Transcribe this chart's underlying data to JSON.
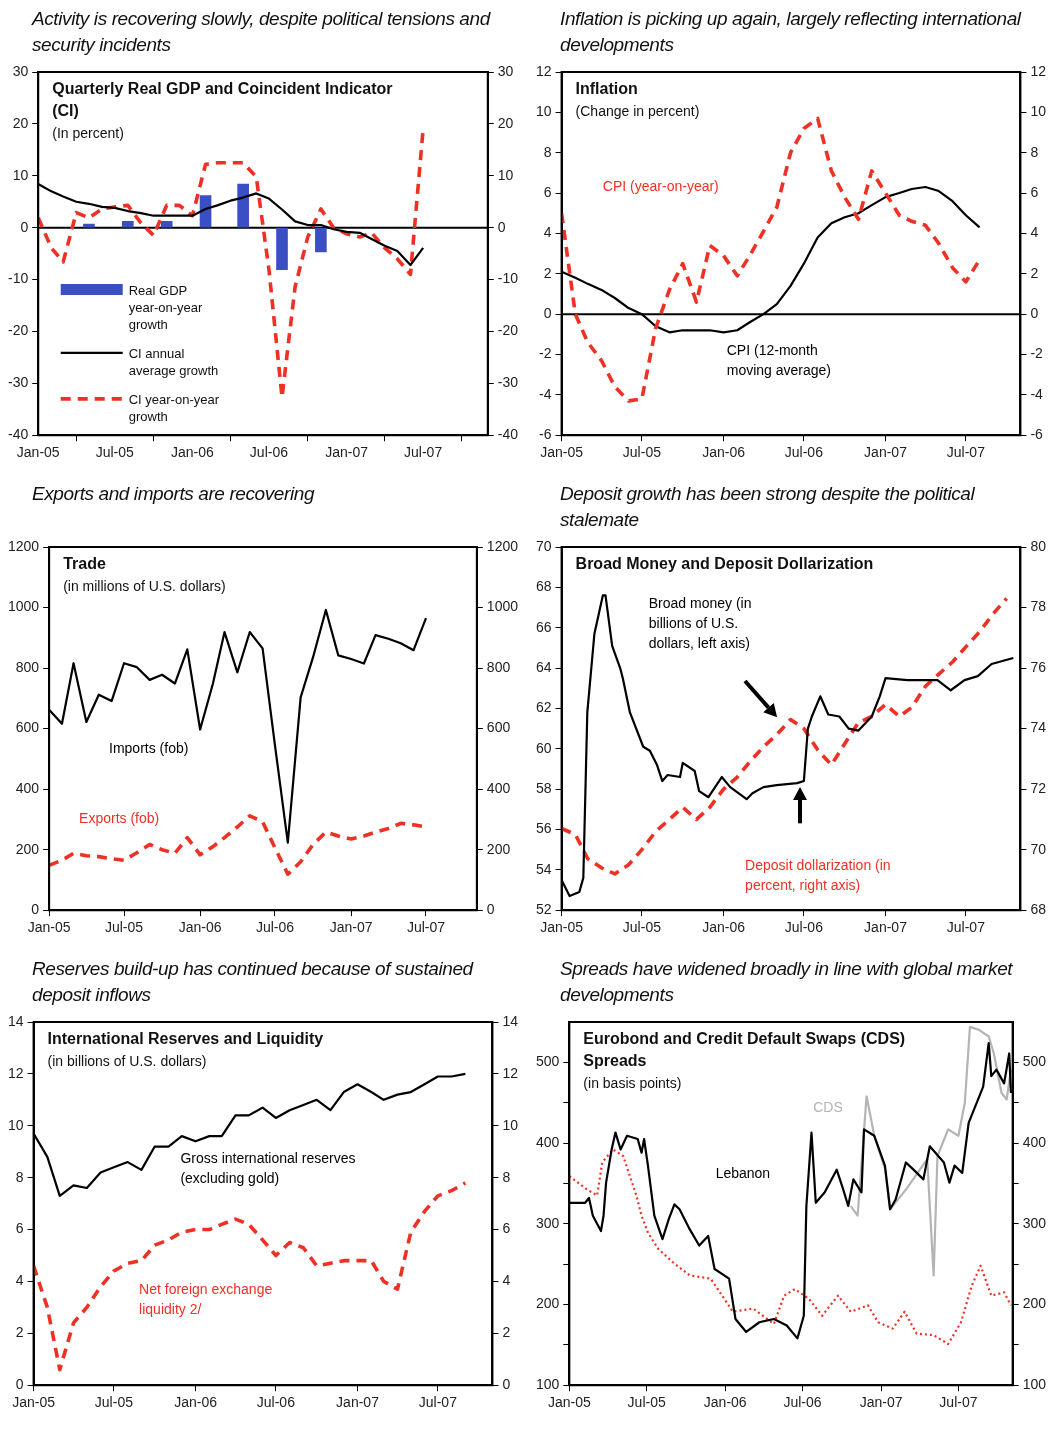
{
  "chart_data": [
    {
      "type": "line",
      "title": "Activity is recovering slowly, despite political tensions and security incidents",
      "subtitle": "Quarterly Real GDP and Coincident Indicator (CI)",
      "annotations": [
        "(In percent)"
      ],
      "x": [
        "2005-01",
        "2005-02",
        "2005-03",
        "2005-04",
        "2005-05",
        "2005-06",
        "2005-07",
        "2005-08",
        "2005-09",
        "2005-10",
        "2005-11",
        "2005-12",
        "2006-01",
        "2006-02",
        "2006-03",
        "2006-04",
        "2006-05",
        "2006-06",
        "2006-07",
        "2006-08",
        "2006-09",
        "2006-10",
        "2006-11",
        "2006-12",
        "2007-01",
        "2007-02",
        "2007-03",
        "2007-04",
        "2007-05",
        "2007-06",
        "2007-07"
      ],
      "series": [
        {
          "name": "Real GDP year-on-year growth",
          "type": "bar",
          "color": "#3b4fc4",
          "x": [
            "2005-05",
            "2005-08",
            "2005-11",
            "2006-02",
            "2006-05",
            "2006-08",
            "2006-11"
          ],
          "values": [
            0.7,
            1.2,
            1.2,
            6.2,
            8.4,
            -8.1,
            -4.7
          ]
        },
        {
          "name": "CI annual average growth",
          "color": "#000000",
          "values": [
            8.4,
            7.0,
            6.0,
            5.0,
            4.6,
            4.0,
            3.8,
            3.2,
            2.8,
            2.3,
            2.3,
            2.3,
            2.3,
            3.6,
            4.3,
            5.2,
            5.8,
            6.6,
            5.6,
            3.5,
            1.2,
            0.5,
            0.5,
            -0.3,
            -0.8,
            -1.0,
            -2.2,
            -3.5,
            -4.5,
            -7.2,
            -3.9
          ]
        },
        {
          "name": "CI year-on-year growth",
          "color": "#ee3124",
          "line_style": "dashed",
          "values": [
            1.9,
            -3.9,
            -6.6,
            2.9,
            1.9,
            3.6,
            4.0,
            4.3,
            0.9,
            -1.5,
            4.3,
            4.3,
            2.3,
            12.2,
            12.5,
            12.5,
            12.5,
            9.8,
            -8,
            -32.7,
            -11.4,
            -1.8,
            3.6,
            0,
            -1.2,
            -1.8,
            -1.0,
            -3.9,
            -6,
            -9,
            19
          ]
        }
      ],
      "xlim": [
        "2005-01",
        "2007-12"
      ],
      "xticks": [
        {
          "value": "2005-01",
          "label": "Jan-05"
        },
        {
          "value": "2005-07",
          "label": "Jul-05"
        },
        {
          "value": "2006-01",
          "label": "Jan-06"
        },
        {
          "value": "2006-07",
          "label": "Jul-06"
        },
        {
          "value": "2007-01",
          "label": "Jan-07"
        },
        {
          "value": "2007-07",
          "label": "Jul-07"
        }
      ],
      "ylim": [
        -40,
        30
      ],
      "yticks": [
        -40,
        -30,
        -20,
        -10,
        0,
        10,
        20,
        30
      ],
      "y2lim": [
        -40,
        30
      ],
      "y2ticks": [
        -40,
        -30,
        -20,
        -10,
        0,
        10,
        20,
        30
      ],
      "ref_lines": [
        {
          "axis": "y",
          "value": 0,
          "color": "#000000"
        }
      ],
      "legend": "bottom left"
    },
    {
      "type": "line",
      "title": "Inflation is picking up again, largely reflecting international developments",
      "subtitle": "Inflation",
      "annotations": [
        "(Change in percent)"
      ],
      "x": [
        "2005-01",
        "2005-02",
        "2005-03",
        "2005-04",
        "2005-05",
        "2005-06",
        "2005-07",
        "2005-08",
        "2005-09",
        "2005-10",
        "2005-11",
        "2005-12",
        "2006-01",
        "2006-02",
        "2006-03",
        "2006-04",
        "2006-05",
        "2006-06",
        "2006-07",
        "2006-08",
        "2006-09",
        "2006-10",
        "2006-11",
        "2006-12",
        "2007-01",
        "2007-02",
        "2007-03",
        "2007-04",
        "2007-05",
        "2007-06",
        "2007-07",
        "2007-08"
      ],
      "series": [
        {
          "name": "CPI (year-on-year)",
          "color": "#ee3124",
          "line_style": "dashed",
          "values": [
            5.0,
            0.0,
            -1.4,
            -2.3,
            -3.6,
            -4.3,
            -4.2,
            -0.7,
            1.2,
            2.5,
            0.6,
            3.4,
            2.9,
            1.9,
            2.9,
            4.1,
            5.3,
            8.0,
            9.2,
            9.7,
            7.1,
            5.8,
            4.7,
            7.1,
            6.0,
            4.9,
            4.6,
            4.4,
            3.5,
            2.3,
            1.6,
            2.7
          ]
        },
        {
          "name": "CPI (12-month moving average)",
          "color": "#000000",
          "values": [
            2.1,
            1.8,
            1.5,
            1.2,
            0.8,
            0.3,
            0,
            -0.6,
            -0.9,
            -0.8,
            -0.8,
            -0.8,
            -0.9,
            -0.8,
            -0.4,
            0,
            0.5,
            1.4,
            2.5,
            3.8,
            4.5,
            4.8,
            5.0,
            5.4,
            5.8,
            6.0,
            6.2,
            6.3,
            6.1,
            5.6,
            4.9,
            4.3
          ]
        }
      ],
      "xlim": [
        "2005-01",
        "2007-11"
      ],
      "xticks": [
        {
          "value": "2005-01",
          "label": "Jan-05"
        },
        {
          "value": "2005-07",
          "label": "Jul-05"
        },
        {
          "value": "2006-01",
          "label": "Jan-06"
        },
        {
          "value": "2006-07",
          "label": "Jul-06"
        },
        {
          "value": "2007-01",
          "label": "Jan-07"
        },
        {
          "value": "2007-07",
          "label": "Jul-07"
        }
      ],
      "ylim": [
        -6,
        12
      ],
      "yticks": [
        -6,
        -4,
        -2,
        0,
        2,
        4,
        6,
        8,
        10,
        12
      ],
      "y2lim": [
        -6,
        12
      ],
      "y2ticks": [
        -6,
        -4,
        -2,
        0,
        2,
        4,
        6,
        8,
        10,
        12
      ],
      "ref_lines": [
        {
          "axis": "y",
          "value": 0,
          "color": "#000000"
        }
      ]
    },
    {
      "type": "line",
      "title": "Exports and imports are recovering",
      "subtitle": "Trade",
      "annotations": [
        "(in millions of U.S. dollars)"
      ],
      "x": [
        "2005-01",
        "2005-02",
        "2005-03",
        "2005-04",
        "2005-05",
        "2005-06",
        "2005-07",
        "2005-08",
        "2005-09",
        "2005-10",
        "2005-11",
        "2005-12",
        "2006-01",
        "2006-02",
        "2006-03",
        "2006-04",
        "2006-05",
        "2006-06",
        "2006-07",
        "2006-08",
        "2006-09",
        "2006-10",
        "2006-11",
        "2006-12",
        "2007-01",
        "2007-02",
        "2007-03",
        "2007-04",
        "2007-05",
        "2007-06",
        "2007-07"
      ],
      "series": [
        {
          "name": "Imports (fob)",
          "color": "#000000",
          "values": [
            662,
            616,
            816,
            622,
            712,
            691,
            816,
            803,
            761,
            778,
            749,
            862,
            597,
            749,
            919,
            786,
            919,
            865,
            544,
            223,
            703,
            836,
            992,
            842,
            830,
            815,
            909,
            897,
            882,
            859,
            965
          ]
        },
        {
          "name": "Exports (fob)",
          "color": "#ee3124",
          "line_style": "dashed",
          "values": [
            148,
            165,
            188,
            180,
            177,
            170,
            165,
            190,
            217,
            200,
            188,
            240,
            183,
            210,
            240,
            275,
            312,
            292,
            206,
            119,
            160,
            217,
            258,
            245,
            235,
            245,
            258,
            270,
            287,
            282,
            275
          ]
        }
      ],
      "xlim": [
        "2005-01",
        "2007-11"
      ],
      "xticks": [
        {
          "value": "2005-01",
          "label": "Jan-05"
        },
        {
          "value": "2005-07",
          "label": "Jul-05"
        },
        {
          "value": "2006-01",
          "label": "Jan-06"
        },
        {
          "value": "2006-07",
          "label": "Jul-06"
        },
        {
          "value": "2007-01",
          "label": "Jan-07"
        },
        {
          "value": "2007-07",
          "label": "Jul-07"
        }
      ],
      "ylim": [
        0,
        1200
      ],
      "yticks": [
        0,
        200,
        400,
        600,
        800,
        1000,
        1200
      ],
      "y2lim": [
        0,
        1200
      ],
      "y2ticks": [
        0,
        200,
        400,
        600,
        800,
        1000,
        1200
      ]
    },
    {
      "type": "line",
      "title": "Deposit growth has been strong despite the political stalemate",
      "subtitle": "Broad Money and Deposit Dollarization",
      "x": [
        "2005-01",
        "2005-02",
        "2005-03",
        "2005-04",
        "2005-05",
        "2005-06",
        "2005-07",
        "2005-08",
        "2005-09",
        "2005-10",
        "2005-11",
        "2005-12",
        "2006-01",
        "2006-02",
        "2006-03",
        "2006-04",
        "2006-05",
        "2006-06",
        "2006-07",
        "2006-08",
        "2006-09",
        "2006-10",
        "2006-11",
        "2006-12",
        "2007-01",
        "2007-02",
        "2007-03",
        "2007-04",
        "2007-05",
        "2007-06",
        "2007-07",
        "2007-08",
        "2007-09",
        "2007-10"
      ],
      "series": [
        {
          "name": "Broad money (in billions of U.S. dollars, left axis)",
          "color": "#000000",
          "x": [
            "2005-01-01",
            "2005-01-19",
            "2005-02-10",
            "2005-02-19",
            "2005-02-28",
            "2005-03-16",
            "2005-04-04",
            "2005-04-10",
            "2005-04-25",
            "2005-05-13",
            "2005-05-19",
            "2005-06-04",
            "2005-07-04",
            "2005-07-19",
            "2005-08-04",
            "2005-08-16",
            "2005-08-28",
            "2005-09-25",
            "2005-10-01",
            "2005-10-28",
            "2005-11-07",
            "2005-11-28",
            "2005-12-28",
            "2006-01-16",
            "2006-02-22",
            "2006-03-07",
            "2006-04-01",
            "2006-05-01",
            "2006-06-16",
            "2006-07-01",
            "2006-07-10",
            "2006-07-19",
            "2006-08-07",
            "2006-08-25",
            "2006-09-19",
            "2006-10-10",
            "2006-11-01",
            "2006-12-01",
            "2006-12-19",
            "2007-01-01",
            "2007-02-19",
            "2007-04-28",
            "2007-05-28",
            "2007-06-28",
            "2007-07-28",
            "2007-08-28",
            "2007-10-16"
          ],
          "values": [
            53.5,
            52.7,
            52.9,
            53.6,
            61.8,
            65.7,
            67.6,
            67.6,
            65.1,
            64.0,
            63.5,
            61.8,
            60.1,
            59.9,
            59.2,
            58.4,
            58.7,
            58.6,
            59.3,
            58.9,
            57.9,
            57.6,
            58.6,
            58.1,
            57.5,
            57.8,
            58.1,
            58.2,
            58.3,
            58.4,
            61.0,
            61.6,
            62.6,
            61.7,
            61.6,
            61.0,
            60.9,
            61.6,
            62.6,
            63.5,
            63.4,
            63.4,
            62.9,
            63.4,
            63.6,
            64.2,
            64.5
          ]
        },
        {
          "name": "Deposit dollarization (in percent, right axis)",
          "color": "#ee3124",
          "line_style": "dashed",
          "axis": "y2",
          "values": [
            70.7,
            70.5,
            69.7,
            69.4,
            69.2,
            69.5,
            70.0,
            70.6,
            71.0,
            71.4,
            71.0,
            71.4,
            72.0,
            72.4,
            72.9,
            73.4,
            73.8,
            74.3,
            74.0,
            73.3,
            72.8,
            73.5,
            74.2,
            74.4,
            74.8,
            74.4,
            74.7,
            75.4,
            75.8,
            76.2,
            76.7,
            77.2,
            77.8,
            78.3
          ]
        }
      ],
      "xlim": [
        "2005-01",
        "2007-11"
      ],
      "xticks": [
        {
          "value": "2005-01",
          "label": "Jan-05"
        },
        {
          "value": "2005-07",
          "label": "Jul-05"
        },
        {
          "value": "2006-01",
          "label": "Jan-06"
        },
        {
          "value": "2006-07",
          "label": "Jul-06"
        },
        {
          "value": "2007-01",
          "label": "Jan-07"
        },
        {
          "value": "2007-07",
          "label": "Jul-07"
        }
      ],
      "ylim": [
        52,
        70
      ],
      "yticks": [
        52,
        54,
        56,
        58,
        60,
        62,
        64,
        66,
        68,
        70
      ],
      "y2lim": [
        68,
        80
      ],
      "y2ticks": [
        68,
        70,
        72,
        74,
        76,
        78,
        80
      ]
    },
    {
      "type": "line",
      "title": "Reserves build-up has continued because of sustained deposit inflows",
      "subtitle": "International Reserves and Liquidity",
      "annotations": [
        "(in billions of U.S. dollars)"
      ],
      "x": [
        "2005-01",
        "2005-02",
        "2005-03",
        "2005-04",
        "2005-05",
        "2005-06",
        "2005-07",
        "2005-08",
        "2005-09",
        "2005-10",
        "2005-11",
        "2005-12",
        "2006-01",
        "2006-02",
        "2006-03",
        "2006-04",
        "2006-05",
        "2006-06",
        "2006-07",
        "2006-08",
        "2006-09",
        "2006-10",
        "2006-11",
        "2006-12",
        "2007-01",
        "2007-02",
        "2007-03",
        "2007-04",
        "2007-05",
        "2007-06",
        "2007-07",
        "2007-08",
        "2007-09"
      ],
      "series": [
        {
          "name": "Gross international reserves (excluding gold)",
          "color": "#000000",
          "values": [
            9.7,
            8.8,
            7.3,
            7.7,
            7.6,
            8.2,
            8.4,
            8.6,
            8.3,
            9.2,
            9.2,
            9.6,
            9.4,
            9.6,
            9.6,
            10.4,
            10.4,
            10.7,
            10.3,
            10.6,
            10.8,
            11.0,
            10.6,
            11.3,
            11.6,
            11.3,
            11.0,
            11.2,
            11.3,
            11.6,
            11.9,
            11.9,
            12.0
          ]
        },
        {
          "name": "Net foreign exchange liquidity 2/",
          "color": "#ee3124",
          "line_style": "dashed",
          "values": [
            4.6,
            3.0,
            0.6,
            2.4,
            3.0,
            3.8,
            4.4,
            4.7,
            4.8,
            5.4,
            5.6,
            5.9,
            6.0,
            6.0,
            6.2,
            6.4,
            6.2,
            5.6,
            5.0,
            5.5,
            5.3,
            4.6,
            4.7,
            4.8,
            4.8,
            4.8,
            4.0,
            3.7,
            5.9,
            6.7,
            7.3,
            7.5,
            7.8
          ]
        }
      ],
      "xlim": [
        "2005-01",
        "2007-11"
      ],
      "xticks": [
        {
          "value": "2005-01",
          "label": "Jan-05"
        },
        {
          "value": "2005-07",
          "label": "Jul-05"
        },
        {
          "value": "2006-01",
          "label": "Jan-06"
        },
        {
          "value": "2006-07",
          "label": "Jul-06"
        },
        {
          "value": "2007-01",
          "label": "Jan-07"
        },
        {
          "value": "2007-07",
          "label": "Jul-07"
        }
      ],
      "ylim": [
        0,
        14
      ],
      "yticks": [
        0,
        2,
        4,
        6,
        8,
        10,
        12,
        14
      ],
      "y2lim": [
        0,
        14
      ],
      "y2ticks": [
        0,
        2,
        4,
        6,
        8,
        10,
        12,
        14
      ]
    },
    {
      "type": "line",
      "title": "Spreads have widened broadly in line with global market developments",
      "subtitle": "Eurobond and Credit Default Swaps (CDS) Spreads",
      "annotations": [
        "(in basis points)"
      ],
      "series": [
        {
          "name": "Lebanon",
          "color": "#000000",
          "x": [
            "2005-01-01",
            "2005-02-07",
            "2005-02-16",
            "2005-02-25",
            "2005-03-16",
            "2005-03-22",
            "2005-03-28",
            "2005-04-10",
            "2005-04-19",
            "2005-05-01",
            "2005-05-16",
            "2005-06-10",
            "2005-06-19",
            "2005-06-25",
            "2005-07-04",
            "2005-07-19",
            "2005-08-07",
            "2005-08-22",
            "2005-09-04",
            "2005-09-16",
            "2005-10-10",
            "2005-11-01",
            "2005-11-22",
            "2005-12-07",
            "2006-01-10",
            "2006-01-25",
            "2006-02-19",
            "2006-03-22",
            "2006-04-25",
            "2006-05-25",
            "2006-06-19",
            "2006-07-04",
            "2006-07-10",
            "2006-07-22",
            "2006-08-01",
            "2006-08-22",
            "2006-09-19",
            "2006-10-04",
            "2006-10-16",
            "2006-10-28",
            "2006-11-16",
            "2006-11-22",
            "2006-12-16",
            "2007-01-10",
            "2007-01-22",
            "2007-02-04",
            "2007-02-28",
            "2007-03-16",
            "2007-04-10",
            "2007-04-25",
            "2007-05-28",
            "2007-06-10",
            "2007-06-22",
            "2007-07-10",
            "2007-07-25",
            "2007-08-10",
            "2007-08-28",
            "2007-09-10",
            "2007-09-16",
            "2007-09-28",
            "2007-10-16",
            "2007-10-28",
            "2007-11-01"
          ],
          "values": [
            326,
            326,
            332,
            310,
            291,
            310,
            351,
            392,
            413,
            392,
            409,
            405,
            388,
            405,
            372,
            310,
            281,
            306,
            324,
            318,
            293,
            273,
            285,
            244,
            232,
            182,
            166,
            178,
            182,
            174,
            158,
            186,
            322,
            413,
            326,
            339,
            367,
            343,
            322,
            355,
            339,
            417,
            409,
            372,
            318,
            330,
            376,
            368,
            355,
            396,
            376,
            351,
            372,
            363,
            425,
            446,
            470,
            524,
            483,
            491,
            474,
            511,
            462
          ]
        },
        {
          "name": "CDS",
          "color": "#b4b4b4",
          "x": [
            "2006-10-22",
            "2006-11-07",
            "2006-11-28",
            "2006-12-16",
            "2007-01-10",
            "2007-01-22",
            "2007-03-01",
            "2007-04-19",
            "2007-05-04",
            "2007-05-13",
            "2007-06-07",
            "2007-07-01",
            "2007-07-16",
            "2007-07-28",
            "2007-08-19",
            "2007-09-10",
            "2007-09-22",
            "2007-10-10",
            "2007-10-22",
            "2007-11-01"
          ],
          "values": [
            322,
            310,
            458,
            409,
            368,
            318,
            343,
            380,
            236,
            384,
            417,
            409,
            450,
            544,
            540,
            532,
            511,
            462,
            454,
            491
          ]
        },
        {
          "color": "#ee3124",
          "line_style": "dotted",
          "x": [
            "2005-01-01",
            "2005-02-10",
            "2005-03-07",
            "2005-03-19",
            "2005-04-13",
            "2005-05-07",
            "2005-06-07",
            "2005-06-19",
            "2005-07-04",
            "2005-07-28",
            "2005-09-01",
            "2005-10-10",
            "2005-11-28",
            "2006-01-19",
            "2006-03-07",
            "2006-04-25",
            "2006-05-19",
            "2006-06-13",
            "2006-07-16",
            "2006-08-16",
            "2006-09-22",
            "2006-10-22",
            "2006-12-01",
            "2006-12-25",
            "2007-01-28",
            "2007-02-25",
            "2007-03-25",
            "2007-05-04",
            "2007-06-07",
            "2007-07-07",
            "2007-08-01",
            "2007-08-22",
            "2007-09-16",
            "2007-10-16",
            "2007-11-01"
          ],
          "values": [
            359,
            343,
            335,
            376,
            392,
            384,
            335,
            310,
            289,
            269,
            252,
            236,
            232,
            191,
            195,
            176,
            211,
            219,
            207,
            186,
            211,
            191,
            199,
            178,
            170,
            191,
            164,
            162,
            151,
            178,
            223,
            248,
            211,
            215,
            199
          ]
        }
      ],
      "xlim": [
        "2005-01",
        "2007-11-05"
      ],
      "xticks": [
        {
          "value": "2005-01",
          "label": "Jan-05"
        },
        {
          "value": "2005-07",
          "label": "Jul-05"
        },
        {
          "value": "2006-01",
          "label": "Jan-06"
        },
        {
          "value": "2006-07",
          "label": "Jul-06"
        },
        {
          "value": "2007-01",
          "label": "Jan-07"
        },
        {
          "value": "2007-07",
          "label": "Jul-07"
        }
      ],
      "ylim": [
        100,
        550
      ],
      "yticks": [
        100,
        {
          "value": 150,
          "label": null
        },
        200,
        {
          "value": 250,
          "label": null
        },
        300,
        {
          "value": 350,
          "label": null
        },
        400,
        {
          "value": 450,
          "label": null
        },
        500
      ],
      "y2lim": [
        100,
        550
      ],
      "y2ticks": [
        100,
        {
          "value": 150,
          "label": null
        },
        200,
        {
          "value": 250,
          "label": null
        },
        300,
        {
          "value": 350,
          "label": null
        },
        400,
        {
          "value": 450,
          "label": null
        },
        500
      ]
    }
  ]
}
